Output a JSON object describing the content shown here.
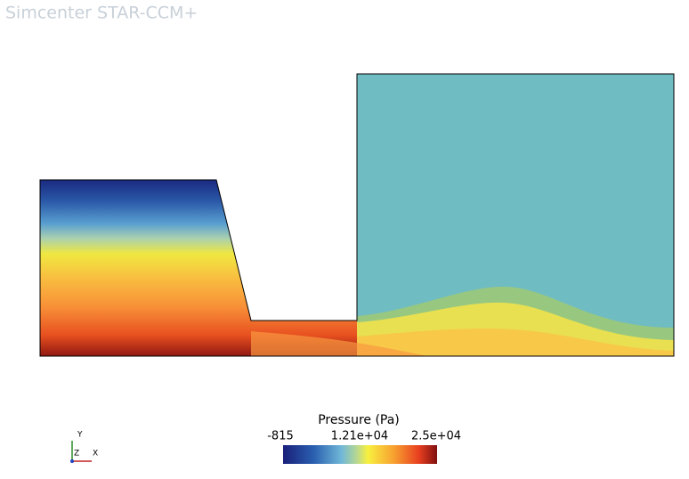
{
  "header": {
    "title": "Simcenter STAR-CCM+"
  },
  "legend": {
    "title": "Pressure (Pa)",
    "ticks": [
      "-815",
      "1.21e+04",
      "2.5e+04"
    ]
  },
  "triad": {
    "y": "Y",
    "z": "Z",
    "x": "X"
  }
}
